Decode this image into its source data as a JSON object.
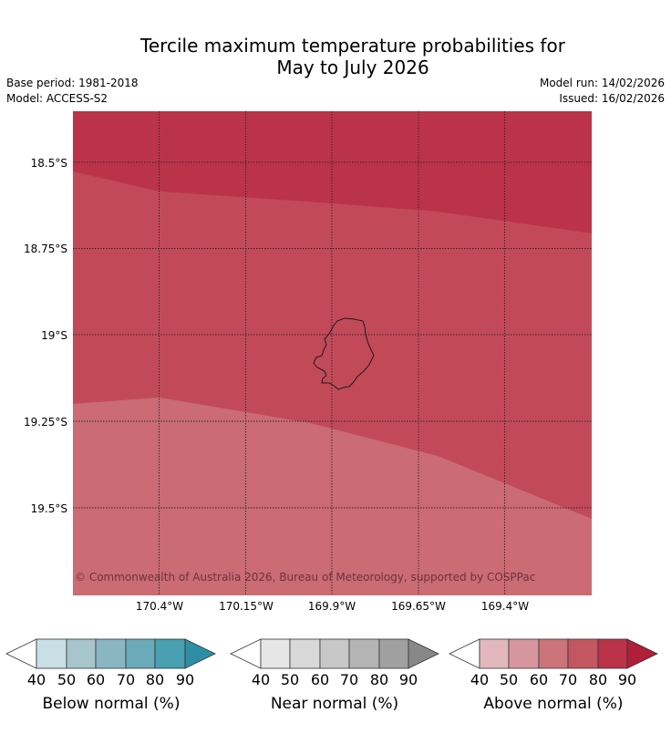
{
  "title": {
    "line1": "Tercile maximum temperature probabilities for",
    "line2": "May to July 2026"
  },
  "meta": {
    "base_period": "Base period: 1981-2018",
    "model": "Model: ACCESS-S2",
    "model_run": "Model run: 14/02/2026",
    "issued": "Issued: 16/02/2026"
  },
  "map": {
    "lat_labels": [
      "18.5°S",
      "18.75°S",
      "19°S",
      "19.25°S",
      "19.5°S"
    ],
    "lon_labels": [
      "170.4°W",
      "170.15°W",
      "169.9°W",
      "169.65°W",
      "169.4°W"
    ],
    "copyright": "© Commonwealth of Australia 2026, Bureau of Meteorology, supported by COSPPac",
    "region_categories": {
      "top": "Above normal 80-90%",
      "middle": "Above normal 70-80%",
      "bottom": "Above normal 60-70%"
    },
    "colors": {
      "top": "#bb3349",
      "middle": "#c24a58",
      "bottom": "#cb6b73",
      "island_outline": "#1a1a1a"
    }
  },
  "colorbars": [
    {
      "label": "Below normal (%)",
      "ticks": [
        "40",
        "50",
        "60",
        "70",
        "80",
        "90"
      ],
      "colors": [
        "#c8e0e6",
        "#a6c6cc",
        "#89b6c2",
        "#6aaab9",
        "#48a0b0",
        "#2e8fa4"
      ]
    },
    {
      "label": "Near normal (%)",
      "ticks": [
        "40",
        "50",
        "60",
        "70",
        "80",
        "90"
      ],
      "colors": [
        "#e6e6e6",
        "#d8d8d8",
        "#c8c8c8",
        "#b4b4b4",
        "#a0a0a0",
        "#888888"
      ]
    },
    {
      "label": "Above normal (%)",
      "ticks": [
        "40",
        "50",
        "60",
        "70",
        "80",
        "90"
      ],
      "colors": [
        "#e2b8bc",
        "#d6969d",
        "#cc7479",
        "#c45661",
        "#bb3349",
        "#b01e3a"
      ]
    }
  ]
}
